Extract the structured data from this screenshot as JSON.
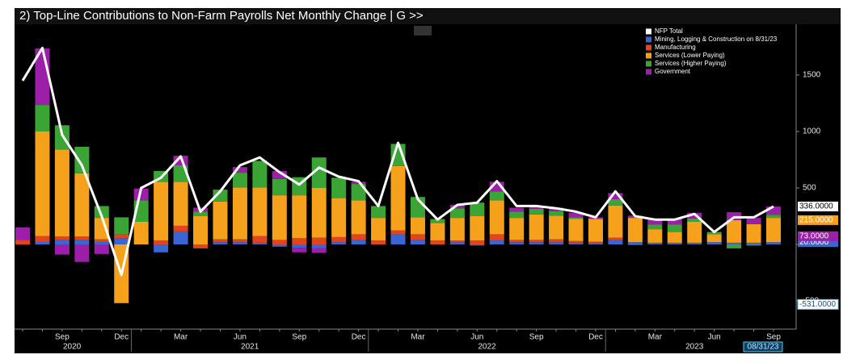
{
  "chart_data": {
    "type": "stacked_bar",
    "title": "2) Top-Line Contributions to Non-Farm Payrolls Net Monthly Change | G >>",
    "categories": [
      null,
      null,
      "Sep",
      null,
      null,
      "Dec",
      null,
      null,
      "Mar",
      null,
      null,
      "Jun",
      null,
      null,
      "Sep",
      null,
      null,
      "Dec",
      null,
      null,
      "Mar",
      null,
      null,
      "Jun",
      null,
      null,
      "Sep",
      null,
      null,
      "Dec",
      null,
      null,
      "Mar",
      null,
      null,
      "Jun",
      null,
      null,
      "Sep"
    ],
    "year_labels": [
      "2020",
      "2021",
      "2022",
      "2023"
    ],
    "date_label": "08/31/23",
    "ylim": [
      -750,
      1950
    ],
    "yticks": [
      -500,
      0,
      500,
      1000,
      1500
    ],
    "legend": "top-right",
    "series": [
      {
        "name": "NFP Total",
        "type": "line",
        "color": "#ffffff",
        "last_value_label": "336.0000",
        "values": [
          1450,
          1740,
          970,
          700,
          250,
          -270,
          500,
          590,
          780,
          290,
          470,
          700,
          770,
          640,
          530,
          680,
          600,
          560,
          340,
          900,
          400,
          220,
          350,
          370,
          560,
          340,
          340,
          320,
          290,
          240,
          470,
          250,
          220,
          220,
          270,
          110,
          240,
          240,
          336
        ]
      },
      {
        "name": "Mining, Logging & Construction on 8/31/23",
        "type": "bar",
        "color": "#3a66d4",
        "last_value_label": "20.0000",
        "values": [
          0,
          25,
          40,
          40,
          25,
          55,
          0,
          -70,
          115,
          0,
          20,
          20,
          15,
          -20,
          -30,
          -35,
          20,
          40,
          0,
          90,
          40,
          0,
          20,
          -10,
          35,
          20,
          20,
          20,
          15,
          15,
          40,
          20,
          15,
          15,
          15,
          20,
          15,
          15,
          20
        ]
      },
      {
        "name": "Manufacturing",
        "type": "bar",
        "color": "#e2451e",
        "values": [
          40,
          50,
          30,
          30,
          20,
          35,
          0,
          35,
          50,
          -35,
          25,
          25,
          60,
          40,
          55,
          60,
          45,
          50,
          35,
          35,
          50,
          35,
          15,
          35,
          55,
          20,
          20,
          25,
          15,
          10,
          20,
          -5,
          0,
          0,
          0,
          0,
          0,
          0,
          0
        ]
      },
      {
        "name": "Services (Lower Paying)",
        "type": "bar",
        "color": "#f6a11c",
        "last_value_label": "215.0000",
        "values": [
          0,
          925,
          770,
          560,
          190,
          -520,
          200,
          520,
          390,
          250,
          335,
          460,
          430,
          395,
          380,
          440,
          345,
          300,
          200,
          570,
          150,
          155,
          200,
          215,
          300,
          195,
          225,
          210,
          195,
          200,
          285,
          215,
          120,
          95,
          185,
          70,
          200,
          165,
          215
        ]
      },
      {
        "name": "Services (Higher Paying)",
        "type": "bar",
        "color": "#3aa534",
        "values": [
          0,
          235,
          215,
          235,
          105,
          150,
          190,
          95,
          145,
          40,
          105,
          130,
          235,
          145,
          160,
          270,
          180,
          145,
          105,
          195,
          180,
          35,
          85,
          120,
          80,
          55,
          50,
          40,
          15,
          0,
          55,
          0,
          40,
          65,
          30,
          20,
          -35,
          -10,
          28
        ]
      },
      {
        "name": "Government",
        "type": "bar",
        "color": "#9b1fa8",
        "last_value_label": "73.0000",
        "values": [
          110,
          500,
          -90,
          -155,
          -85,
          0,
          105,
          0,
          85,
          35,
          0,
          50,
          0,
          70,
          -40,
          -40,
          0,
          20,
          0,
          0,
          0,
          0,
          30,
          0,
          85,
          35,
          20,
          30,
          40,
          15,
          55,
          20,
          50,
          55,
          50,
          0,
          70,
          55,
          73
        ]
      }
    ],
    "annotations": [
      {
        "value": -531,
        "label": "-531.0000"
      }
    ]
  }
}
